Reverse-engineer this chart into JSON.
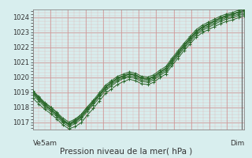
{
  "title": "Pression niveau de la mer( hPa )",
  "xlabel_left": "Ve5am",
  "xlabel_right": "Dim",
  "ylim": [
    1016.5,
    1024.5
  ],
  "xlim": [
    0,
    36
  ],
  "yticks": [
    1017,
    1018,
    1019,
    1020,
    1021,
    1022,
    1023,
    1024
  ],
  "bg_color": "#d8eeee",
  "line_color": "#2d6a2d",
  "series": [
    [
      1019.0,
      1018.6,
      1018.2,
      1017.8,
      1017.5,
      1017.1,
      1016.85,
      1017.15,
      1017.5,
      1018.0,
      1018.4,
      1018.8,
      1019.3,
      1019.65,
      1019.9,
      1020.05,
      1020.2,
      1020.1,
      1019.9,
      1019.85,
      1020.0,
      1020.3,
      1020.55,
      1021.1,
      1021.6,
      1022.1,
      1022.55,
      1023.0,
      1023.3,
      1023.5,
      1023.7,
      1023.9,
      1024.1,
      1024.2,
      1024.3,
      1024.4
    ],
    [
      1018.8,
      1018.4,
      1018.0,
      1017.7,
      1017.35,
      1016.95,
      1016.7,
      1016.9,
      1017.2,
      1017.7,
      1018.15,
      1018.6,
      1019.1,
      1019.4,
      1019.7,
      1019.9,
      1020.0,
      1019.9,
      1019.7,
      1019.65,
      1019.8,
      1020.1,
      1020.35,
      1020.9,
      1021.4,
      1021.9,
      1022.35,
      1022.8,
      1023.1,
      1023.3,
      1023.5,
      1023.7,
      1023.85,
      1023.95,
      1024.1,
      1024.2
    ],
    [
      1018.6,
      1018.2,
      1017.85,
      1017.55,
      1017.2,
      1016.8,
      1016.55,
      1016.7,
      1016.95,
      1017.45,
      1017.9,
      1018.4,
      1018.9,
      1019.2,
      1019.5,
      1019.7,
      1019.85,
      1019.75,
      1019.55,
      1019.5,
      1019.65,
      1019.95,
      1020.2,
      1020.75,
      1021.25,
      1021.75,
      1022.2,
      1022.65,
      1022.95,
      1023.15,
      1023.35,
      1023.55,
      1023.7,
      1023.8,
      1023.95,
      1024.1
    ],
    [
      1019.05,
      1018.65,
      1018.25,
      1017.95,
      1017.6,
      1017.15,
      1016.9,
      1017.1,
      1017.4,
      1017.9,
      1018.35,
      1018.85,
      1019.35,
      1019.65,
      1019.95,
      1020.1,
      1020.25,
      1020.15,
      1019.95,
      1019.9,
      1020.05,
      1020.35,
      1020.6,
      1021.15,
      1021.65,
      1022.15,
      1022.6,
      1023.05,
      1023.35,
      1023.55,
      1023.75,
      1023.95,
      1024.1,
      1024.2,
      1024.35,
      1024.45
    ],
    [
      1019.1,
      1018.7,
      1018.3,
      1018.0,
      1017.65,
      1017.25,
      1017.0,
      1017.2,
      1017.5,
      1018.0,
      1018.45,
      1018.95,
      1019.45,
      1019.75,
      1020.05,
      1020.2,
      1020.35,
      1020.25,
      1020.05,
      1020.0,
      1020.15,
      1020.45,
      1020.7,
      1021.25,
      1021.75,
      1022.25,
      1022.7,
      1023.15,
      1023.45,
      1023.65,
      1023.85,
      1024.05,
      1024.2,
      1024.3,
      1024.45,
      1024.5
    ],
    [
      1018.9,
      1018.5,
      1018.1,
      1017.8,
      1017.45,
      1017.05,
      1016.8,
      1017.0,
      1017.3,
      1017.8,
      1018.25,
      1018.75,
      1019.2,
      1019.5,
      1019.8,
      1019.95,
      1020.1,
      1020.0,
      1019.8,
      1019.75,
      1019.9,
      1020.2,
      1020.45,
      1021.0,
      1021.5,
      1022.0,
      1022.45,
      1022.9,
      1023.2,
      1023.4,
      1023.6,
      1023.8,
      1023.95,
      1024.05,
      1024.2,
      1024.3
    ],
    [
      1018.95,
      1018.55,
      1018.15,
      1017.85,
      1017.5,
      1017.1,
      1016.85,
      1017.05,
      1017.35,
      1017.85,
      1018.3,
      1018.8,
      1019.3,
      1019.6,
      1019.9,
      1020.05,
      1020.2,
      1020.1,
      1019.9,
      1019.85,
      1020.0,
      1020.3,
      1020.55,
      1021.1,
      1021.6,
      1022.1,
      1022.55,
      1023.0,
      1023.3,
      1023.5,
      1023.7,
      1023.9,
      1024.05,
      1024.15,
      1024.3,
      1024.4
    ]
  ],
  "vline_x": 35.5,
  "xtick_left_x": 0,
  "xtick_right_x": 35.5
}
